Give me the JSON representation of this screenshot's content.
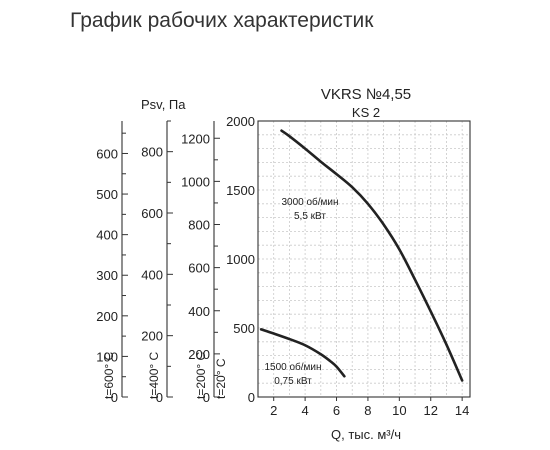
{
  "page_title": "График рабочих характеристик",
  "chart_data": {
    "type": "line",
    "title": "VKRS №4,55",
    "subtitle": "KS 2",
    "xlabel": "Q, тыс. м³/ч",
    "ylabel": "Psv, Па",
    "xlim": [
      1,
      14.5
    ],
    "ylim": [
      0,
      2000
    ],
    "x_ticks": [
      2,
      4,
      6,
      8,
      10,
      12,
      14
    ],
    "y_ticks": [
      0,
      500,
      1000,
      1500,
      2000
    ],
    "grid": true,
    "series": [
      {
        "name": "3000 об/мин\n5,5 кВт",
        "x": [
          2.5,
          3.0,
          4.0,
          5.0,
          6.0,
          7.0,
          8.0,
          9.0,
          10.0,
          11.0,
          12.0,
          13.0,
          14.0
        ],
        "y": [
          1930,
          1890,
          1800,
          1705,
          1615,
          1520,
          1400,
          1250,
          1070,
          850,
          620,
          380,
          120
        ]
      },
      {
        "name": "1500 об/мин\n0,75 кВт",
        "x": [
          1.2,
          2.0,
          3.0,
          4.0,
          5.0,
          5.6,
          6.0,
          6.5
        ],
        "y": [
          490,
          460,
          420,
          375,
          310,
          260,
          220,
          150
        ]
      }
    ],
    "temperature_axes": [
      {
        "label": "t=600° C",
        "range": [
          0,
          680
        ],
        "ticks": [
          0,
          100,
          200,
          300,
          400,
          500,
          600
        ]
      },
      {
        "label": "t=400° C",
        "range": [
          0,
          900
        ],
        "ticks": [
          0,
          200,
          400,
          600,
          800
        ]
      },
      {
        "label": "t=200° C",
        "range": [
          0,
          1280
        ],
        "ticks": [
          0,
          200,
          400,
          600,
          800,
          1000,
          1200
        ]
      },
      {
        "label": "t=20° C",
        "range": [
          0,
          2000
        ],
        "ticks": [
          0,
          500,
          1000,
          1500,
          2000
        ]
      }
    ]
  }
}
